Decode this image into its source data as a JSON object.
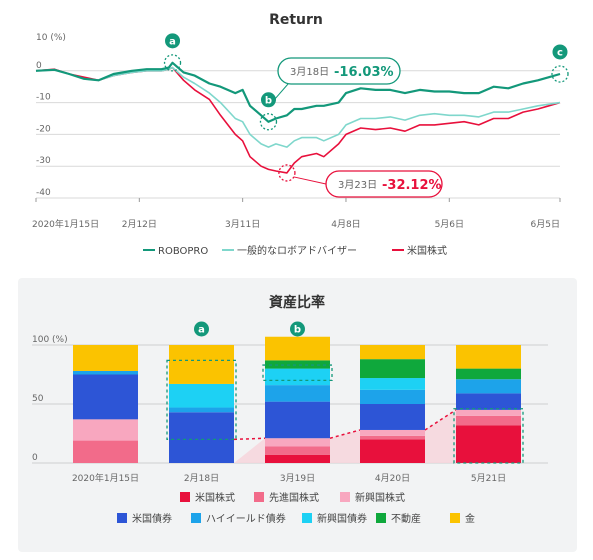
{
  "chart_data": [
    {
      "type": "line",
      "title": "Return",
      "ylabel": "",
      "y_unit_label": "10 (%)",
      "ylim": [
        -40,
        10
      ],
      "y_ticks": [
        10,
        0,
        -10,
        -20,
        -30,
        -40
      ],
      "x_range": [
        "2020-01-15",
        "2020-06-05"
      ],
      "x_tick_labels": [
        "2020年1月15日",
        "2月12日",
        "3月11日",
        "4月8日",
        "5月6日",
        "6月5日"
      ],
      "x_tick_dates": [
        "2020-01-15",
        "2020-02-12",
        "2020-03-11",
        "2020-04-08",
        "2020-05-06",
        "2020-06-05"
      ],
      "series": [
        {
          "name": "ROBOPRO",
          "color": "#13987a",
          "points": [
            [
              "2020-01-15",
              0
            ],
            [
              "2020-01-20",
              0.3
            ],
            [
              "2020-01-24",
              -1
            ],
            [
              "2020-01-28",
              -2.5
            ],
            [
              "2020-02-01",
              -3
            ],
            [
              "2020-02-05",
              -1
            ],
            [
              "2020-02-10",
              0
            ],
            [
              "2020-02-14",
              0.5
            ],
            [
              "2020-02-18",
              0.5
            ],
            [
              "2020-02-20",
              1
            ],
            [
              "2020-02-21",
              2.5
            ],
            [
              "2020-02-24",
              -0.5
            ],
            [
              "2020-02-27",
              -1.5
            ],
            [
              "2020-03-02",
              -4
            ],
            [
              "2020-03-05",
              -5
            ],
            [
              "2020-03-09",
              -7
            ],
            [
              "2020-03-11",
              -6
            ],
            [
              "2020-03-13",
              -11
            ],
            [
              "2020-03-16",
              -14
            ],
            [
              "2020-03-18",
              -16.03
            ],
            [
              "2020-03-20",
              -15
            ],
            [
              "2020-03-23",
              -14
            ],
            [
              "2020-03-25",
              -12
            ],
            [
              "2020-03-27",
              -12
            ],
            [
              "2020-03-31",
              -11
            ],
            [
              "2020-04-02",
              -11
            ],
            [
              "2020-04-06",
              -10
            ],
            [
              "2020-04-08",
              -7
            ],
            [
              "2020-04-12",
              -5.5
            ],
            [
              "2020-04-16",
              -6
            ],
            [
              "2020-04-20",
              -6
            ],
            [
              "2020-04-24",
              -7
            ],
            [
              "2020-04-28",
              -6
            ],
            [
              "2020-05-02",
              -6.5
            ],
            [
              "2020-05-06",
              -6.5
            ],
            [
              "2020-05-10",
              -7
            ],
            [
              "2020-05-14",
              -7
            ],
            [
              "2020-05-18",
              -5
            ],
            [
              "2020-05-22",
              -5.5
            ],
            [
              "2020-05-26",
              -4
            ],
            [
              "2020-05-30",
              -3
            ],
            [
              "2020-06-02",
              -2
            ],
            [
              "2020-06-05",
              -1
            ]
          ]
        },
        {
          "name": "一般的なロボアドバイザー",
          "color": "#7fd7cc",
          "points": [
            [
              "2020-01-15",
              0
            ],
            [
              "2020-01-20",
              0.3
            ],
            [
              "2020-01-24",
              -1
            ],
            [
              "2020-01-28",
              -2.5
            ],
            [
              "2020-02-01",
              -3
            ],
            [
              "2020-02-05",
              -1.5
            ],
            [
              "2020-02-10",
              -0.5
            ],
            [
              "2020-02-14",
              0
            ],
            [
              "2020-02-18",
              0
            ],
            [
              "2020-02-20",
              0.5
            ],
            [
              "2020-02-21",
              1
            ],
            [
              "2020-02-24",
              -2
            ],
            [
              "2020-02-27",
              -4
            ],
            [
              "2020-03-02",
              -7
            ],
            [
              "2020-03-05",
              -10
            ],
            [
              "2020-03-09",
              -15
            ],
            [
              "2020-03-11",
              -16
            ],
            [
              "2020-03-13",
              -20
            ],
            [
              "2020-03-16",
              -23
            ],
            [
              "2020-03-18",
              -24
            ],
            [
              "2020-03-20",
              -23
            ],
            [
              "2020-03-23",
              -24
            ],
            [
              "2020-03-25",
              -22
            ],
            [
              "2020-03-27",
              -21
            ],
            [
              "2020-03-31",
              -21
            ],
            [
              "2020-04-02",
              -22
            ],
            [
              "2020-04-06",
              -20
            ],
            [
              "2020-04-08",
              -17
            ],
            [
              "2020-04-12",
              -15
            ],
            [
              "2020-04-16",
              -15
            ],
            [
              "2020-04-20",
              -14.5
            ],
            [
              "2020-04-24",
              -15.5
            ],
            [
              "2020-04-28",
              -14
            ],
            [
              "2020-05-02",
              -13.5
            ],
            [
              "2020-05-06",
              -14
            ],
            [
              "2020-05-10",
              -14
            ],
            [
              "2020-05-14",
              -14.5
            ],
            [
              "2020-05-18",
              -13
            ],
            [
              "2020-05-22",
              -13
            ],
            [
              "2020-05-26",
              -12
            ],
            [
              "2020-05-30",
              -11
            ],
            [
              "2020-06-02",
              -10.5
            ],
            [
              "2020-06-05",
              -10
            ]
          ]
        },
        {
          "name": "米国株式",
          "color": "#e8103c",
          "points": [
            [
              "2020-01-15",
              0
            ],
            [
              "2020-01-20",
              0.5
            ],
            [
              "2020-01-24",
              -1
            ],
            [
              "2020-01-28",
              -2
            ],
            [
              "2020-02-01",
              -3
            ],
            [
              "2020-02-05",
              -1.5
            ],
            [
              "2020-02-10",
              -0.5
            ],
            [
              "2020-02-14",
              0
            ],
            [
              "2020-02-18",
              0
            ],
            [
              "2020-02-20",
              0.5
            ],
            [
              "2020-02-21",
              1
            ],
            [
              "2020-02-24",
              -3
            ],
            [
              "2020-02-27",
              -6
            ],
            [
              "2020-03-02",
              -9
            ],
            [
              "2020-03-05",
              -14
            ],
            [
              "2020-03-09",
              -20
            ],
            [
              "2020-03-11",
              -22
            ],
            [
              "2020-03-13",
              -27
            ],
            [
              "2020-03-16",
              -30
            ],
            [
              "2020-03-18",
              -31
            ],
            [
              "2020-03-20",
              -31.5
            ],
            [
              "2020-03-23",
              -32.12
            ],
            [
              "2020-03-25",
              -29
            ],
            [
              "2020-03-27",
              -27
            ],
            [
              "2020-03-31",
              -26
            ],
            [
              "2020-04-02",
              -27
            ],
            [
              "2020-04-06",
              -23
            ],
            [
              "2020-04-08",
              -20
            ],
            [
              "2020-04-12",
              -18
            ],
            [
              "2020-04-16",
              -18.5
            ],
            [
              "2020-04-20",
              -18
            ],
            [
              "2020-04-24",
              -19
            ],
            [
              "2020-04-28",
              -17
            ],
            [
              "2020-05-02",
              -17
            ],
            [
              "2020-05-06",
              -16.5
            ],
            [
              "2020-05-10",
              -16
            ],
            [
              "2020-05-14",
              -17
            ],
            [
              "2020-05-18",
              -15
            ],
            [
              "2020-05-22",
              -15
            ],
            [
              "2020-05-26",
              -13
            ],
            [
              "2020-05-30",
              -12
            ],
            [
              "2020-06-02",
              -11
            ],
            [
              "2020-06-05",
              -10
            ]
          ]
        }
      ],
      "markers": [
        {
          "label": "a",
          "date": "2020-02-21",
          "value": 2.5
        },
        {
          "label": "b",
          "date": "2020-03-18",
          "value": -16.03
        },
        {
          "label": "c",
          "date": "2020-06-05",
          "value": -1
        }
      ],
      "annotations": [
        {
          "date_text": "3月18日",
          "value_text": "-16.03%",
          "color": "#13987a",
          "date": "2020-03-18",
          "value": -16.03
        },
        {
          "date_text": "3月23日",
          "value_text": "-32.12%",
          "color": "#e8103c",
          "date": "2020-03-23",
          "value": -32.12
        }
      ],
      "legend_position": "bottom",
      "grid": true
    },
    {
      "type": "bar",
      "stacked": true,
      "title": "資産比率",
      "y_unit_label": "100 (%)",
      "y_ticks": [
        100,
        50,
        0
      ],
      "ylim": [
        0,
        100
      ],
      "categories": [
        "2020年1月15日",
        "2月18日",
        "3月19日",
        "4月20日",
        "5月21日"
      ],
      "series": [
        {
          "name": "米国株式",
          "color": "#e8103c",
          "values": [
            0,
            0,
            7,
            20,
            32
          ]
        },
        {
          "name": "先進国株式",
          "color": "#f26b8a",
          "values": [
            19,
            0,
            7,
            3,
            8
          ]
        },
        {
          "name": "新興国株式",
          "color": "#f8a7bf",
          "values": [
            18,
            0,
            7,
            5,
            5
          ]
        },
        {
          "name": "米国債券",
          "color": "#2d55d6",
          "values": [
            38,
            43,
            31,
            22,
            14
          ]
        },
        {
          "name": "ハイイールド債券",
          "color": "#1da3ea",
          "values": [
            3,
            4,
            14,
            12,
            12
          ]
        },
        {
          "name": "新興国債券",
          "color": "#1dd1f4",
          "values": [
            0,
            20,
            14,
            10,
            0
          ]
        },
        {
          "name": "不動産",
          "color": "#0fa83c",
          "values": [
            0,
            0,
            7,
            16,
            9
          ]
        },
        {
          "name": "金",
          "color": "#fbc300",
          "values": [
            22,
            33,
            20,
            12,
            20
          ]
        }
      ],
      "markers": [
        {
          "label": "a",
          "category": "2月18日"
        },
        {
          "label": "b",
          "category": "3月19日"
        }
      ],
      "legend_position": "bottom"
    }
  ]
}
